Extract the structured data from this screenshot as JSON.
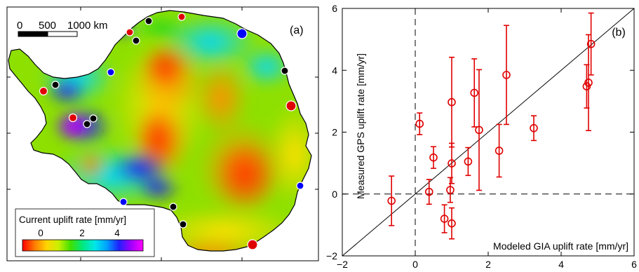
{
  "panel_a": {
    "panel_label": "(a)",
    "scale_bar": {
      "labels": [
        "0",
        "500",
        "1000 km"
      ]
    },
    "colorbar": {
      "title": "Current uplift rate [mm/yr]",
      "tick_labels": [
        "0",
        "2",
        "4"
      ],
      "colors": [
        "#ff0000",
        "#ff7a00",
        "#ffd400",
        "#c8f000",
        "#40e000",
        "#00e880",
        "#00e8e8",
        "#00a0ff",
        "#2020ff",
        "#a000ff",
        "#ff00ff"
      ]
    },
    "gps_station_marker_colors": [
      "#e00000",
      "#0000ff",
      "#000000"
    ]
  },
  "chart_data": {
    "type": "scatter",
    "panel_label": "(b)",
    "xlabel": "Modeled GIA uplift rate [mm/yr]",
    "ylabel": "Measured GPS uplift rate [mm/yr]",
    "xlim": [
      -2,
      6
    ],
    "ylim": [
      -2,
      6
    ],
    "x_ticks": [
      -2,
      0,
      2,
      4,
      6
    ],
    "y_ticks": [
      -2,
      0,
      2,
      4,
      6
    ],
    "reference_lines": [
      "y = x",
      "x = 0",
      "y = 0"
    ],
    "marker_color": "#e00000",
    "points": [
      {
        "x": -0.65,
        "y": -0.22,
        "err": 0.8
      },
      {
        "x": 0.12,
        "y": 2.27,
        "err": 0.35
      },
      {
        "x": 0.38,
        "y": 0.07,
        "err": 0.4
      },
      {
        "x": 0.5,
        "y": 1.18,
        "err": 0.35
      },
      {
        "x": 0.8,
        "y": -0.8,
        "err": 0.45
      },
      {
        "x": 0.96,
        "y": 0.13,
        "err": 0.4
      },
      {
        "x": 1.0,
        "y": -0.95,
        "err": 0.5
      },
      {
        "x": 1.0,
        "y": 0.99,
        "err": 0.65
      },
      {
        "x": 1.0,
        "y": 2.97,
        "err": 1.45
      },
      {
        "x": 1.45,
        "y": 1.05,
        "err": 0.45
      },
      {
        "x": 1.62,
        "y": 3.27,
        "err": 1.1
      },
      {
        "x": 1.75,
        "y": 2.07,
        "err": 1.95
      },
      {
        "x": 2.3,
        "y": 1.4,
        "err": 0.85
      },
      {
        "x": 2.5,
        "y": 3.85,
        "err": 1.6
      },
      {
        "x": 3.25,
        "y": 2.13,
        "err": 0.4
      },
      {
        "x": 4.7,
        "y": 3.48,
        "err": 0.7
      },
      {
        "x": 4.75,
        "y": 3.6,
        "err": 1.55
      },
      {
        "x": 4.82,
        "y": 4.85,
        "err": 1.0
      }
    ]
  }
}
